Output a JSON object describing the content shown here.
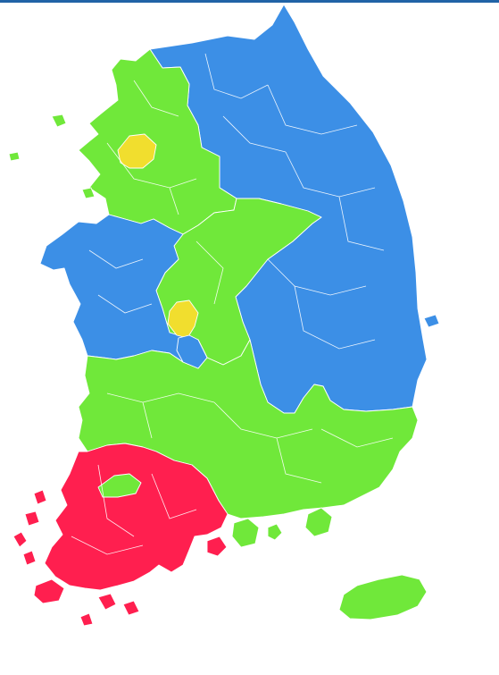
{
  "colors": {
    "top_bar": "#2163a6",
    "blue": "#3c8fe6",
    "green": "#70e83a",
    "red": "#ff1f4f",
    "yellow": "#f1de2e",
    "boundary": "#ffffff"
  },
  "regions": [
    {
      "name": "northeast-blue",
      "color": "blue"
    },
    {
      "name": "west-coast-blue",
      "color": "blue"
    },
    {
      "name": "capital-green",
      "color": "green"
    },
    {
      "name": "central-green",
      "color": "green"
    },
    {
      "name": "southeast-green",
      "color": "green"
    },
    {
      "name": "southwest-red",
      "color": "red"
    },
    {
      "name": "capital-yellow",
      "color": "yellow"
    },
    {
      "name": "central-yellow",
      "color": "yellow"
    },
    {
      "name": "jeju-green",
      "color": "green"
    }
  ]
}
